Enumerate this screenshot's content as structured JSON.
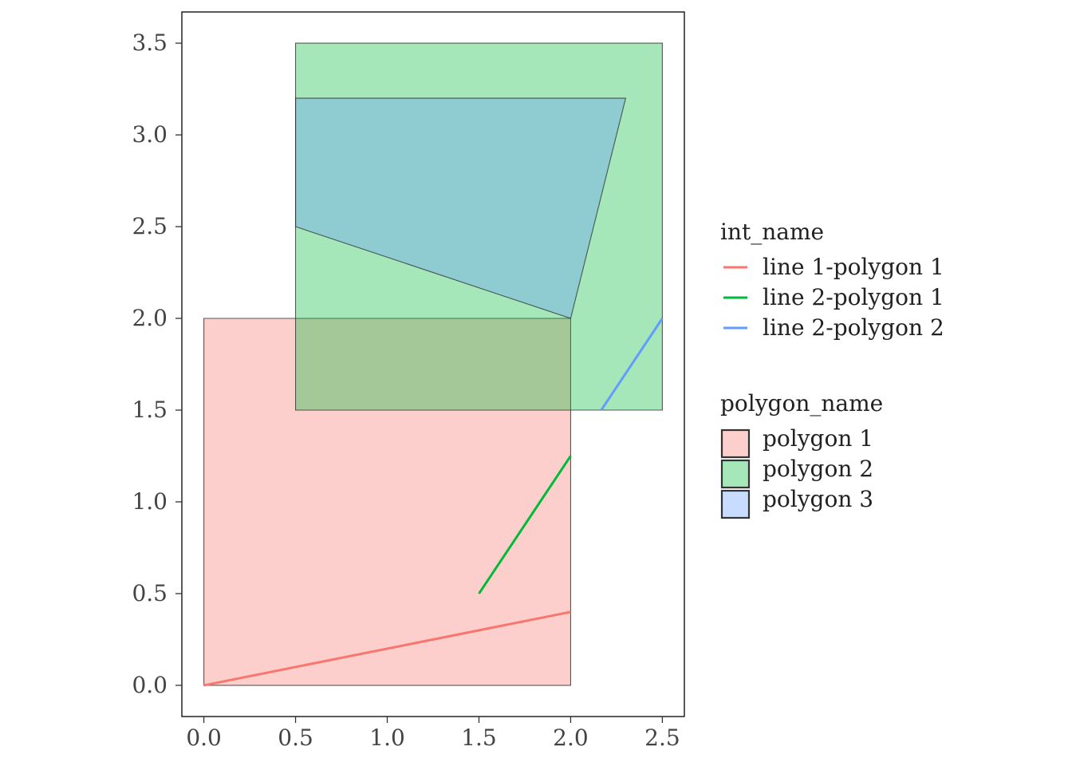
{
  "chart_data": {
    "type": "area",
    "xlim": [
      -0.12,
      2.62
    ],
    "ylim": [
      -0.17,
      3.67
    ],
    "x_ticks": [
      0,
      0.5,
      1,
      1.5,
      2,
      2.5
    ],
    "x_tick_labels": [
      "0.0",
      "0.5",
      "1.0",
      "1.5",
      "2.0",
      "2.5"
    ],
    "y_ticks": [
      0,
      0.5,
      1,
      1.5,
      2,
      2.5,
      3,
      3.5
    ],
    "y_tick_labels": [
      "0.0",
      "0.5",
      "1.0",
      "1.5",
      "2.0",
      "2.5",
      "3.0",
      "3.5"
    ],
    "grid": false,
    "legend_position": "right",
    "polygons": [
      {
        "name": "polygon 1",
        "color": "#F8766D",
        "points": [
          [
            0,
            0
          ],
          [
            2,
            0
          ],
          [
            2,
            2
          ],
          [
            0,
            2
          ]
        ]
      },
      {
        "name": "polygon 2",
        "color": "#00BA38",
        "points": [
          [
            0.5,
            1.5
          ],
          [
            2.5,
            1.5
          ],
          [
            2.5,
            3.5
          ],
          [
            0.5,
            3.5
          ]
        ]
      },
      {
        "name": "polygon 3",
        "color": "#619CFF",
        "points": [
          [
            0.5,
            2.5
          ],
          [
            2,
            2
          ],
          [
            2.3,
            3.2
          ],
          [
            0.5,
            3.2
          ]
        ]
      }
    ],
    "lines": [
      {
        "name": "line 1-polygon 1",
        "color": "#F8766D",
        "points": [
          [
            0,
            0
          ],
          [
            2,
            0.4
          ]
        ]
      },
      {
        "name": "line 2-polygon 1",
        "color": "#00BA38",
        "points": [
          [
            1.5,
            0.5
          ],
          [
            2,
            1.25
          ]
        ]
      },
      {
        "name": "line 2-polygon 2",
        "color": "#619CFF",
        "points": [
          [
            2.1667,
            1.5
          ],
          [
            2.5,
            2
          ]
        ]
      }
    ],
    "legends": [
      {
        "title": "int_name",
        "kind": "line",
        "entries": [
          "line 1-polygon 1",
          "line 2-polygon 1",
          "line 2-polygon 2"
        ]
      },
      {
        "title": "polygon_name",
        "kind": "fill",
        "entries": [
          "polygon 1",
          "polygon 2",
          "polygon 3"
        ]
      }
    ]
  }
}
